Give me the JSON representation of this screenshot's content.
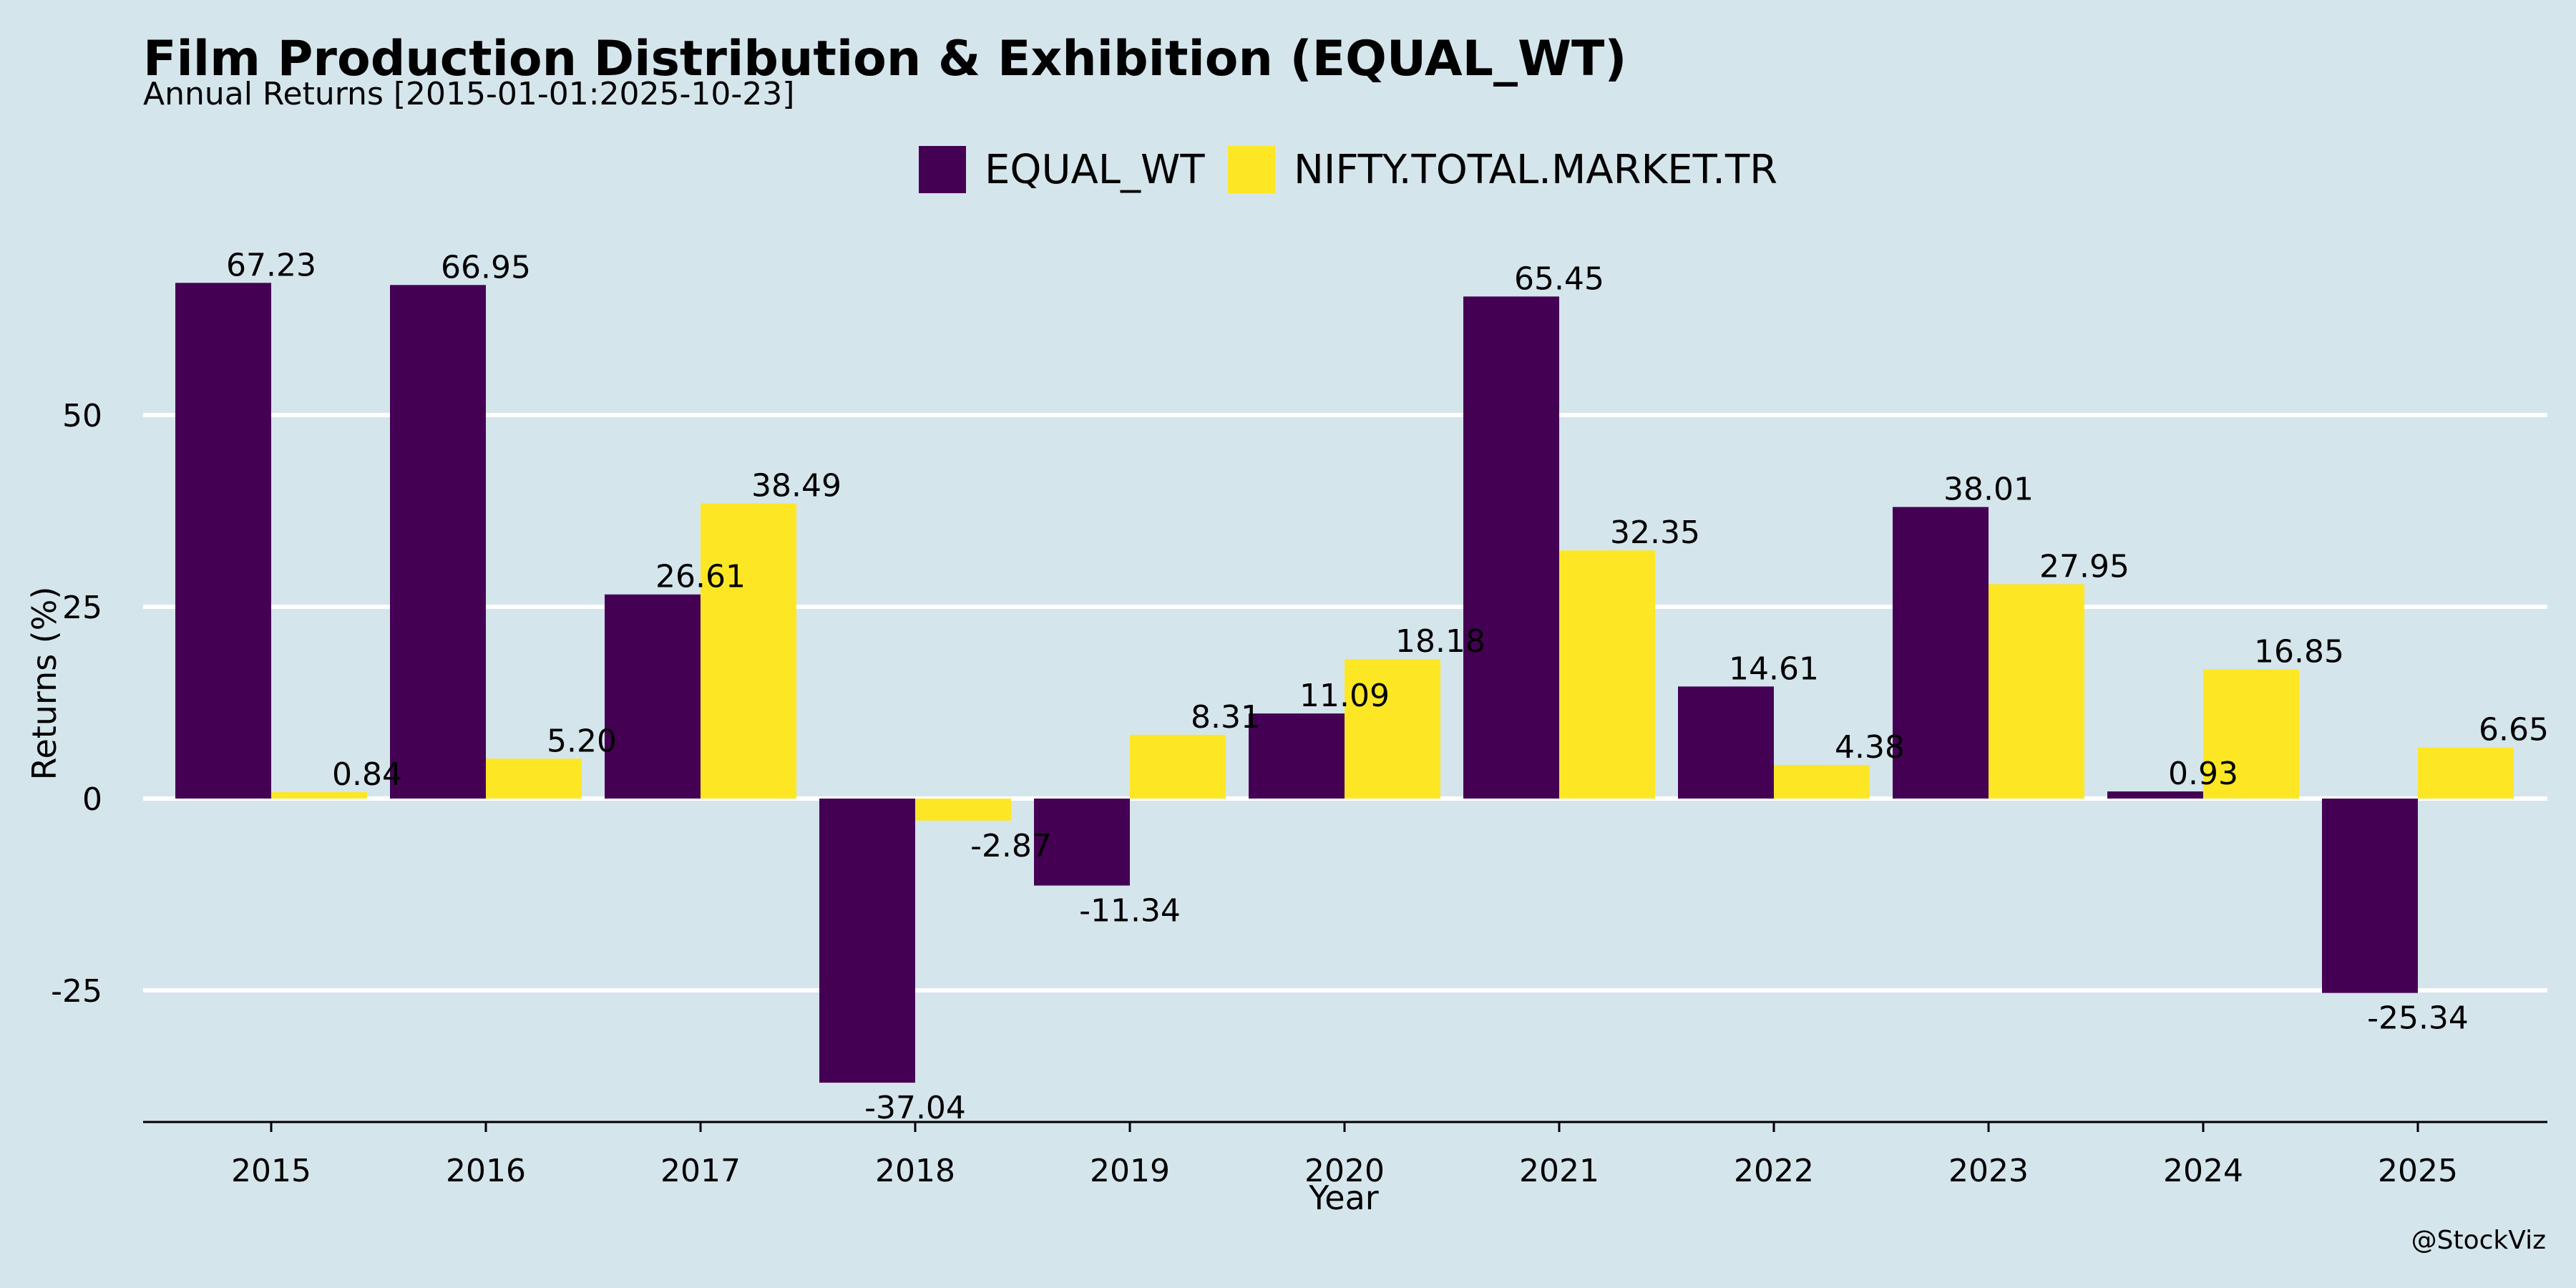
{
  "chart_data": {
    "type": "bar",
    "title": "Film Production Distribution & Exhibition (EQUAL_WT)",
    "subtitle": "Annual Returns [2015-01-01:2025-10-23]",
    "xlabel": "Year",
    "ylabel": "Returns (%)",
    "categories": [
      "2015",
      "2016",
      "2017",
      "2018",
      "2019",
      "2020",
      "2021",
      "2022",
      "2023",
      "2024",
      "2025"
    ],
    "series": [
      {
        "name": "EQUAL_WT",
        "color": "#440154",
        "values": [
          67.23,
          66.95,
          26.61,
          -37.04,
          -11.34,
          11.09,
          65.45,
          14.61,
          38.01,
          0.93,
          -25.34
        ],
        "labels": [
          "67.23",
          "66.95",
          "26.61",
          "-37.04",
          "-11.34",
          "11.09",
          "65.45",
          "14.61",
          "38.01",
          "0.93",
          "-25.34"
        ]
      },
      {
        "name": "NIFTY.TOTAL.MARKET.TR",
        "color": "#fde725",
        "values": [
          0.84,
          5.2,
          38.49,
          -2.87,
          8.31,
          18.18,
          32.35,
          4.38,
          27.95,
          16.85,
          6.65
        ],
        "labels": [
          "0.84",
          "5.20",
          "38.49",
          "-2.87",
          "8.31",
          "18.18",
          "32.35",
          "4.38",
          "27.95",
          "16.85",
          "6.65"
        ]
      }
    ],
    "yticks": [
      -25,
      0,
      25,
      50
    ],
    "ylim": [
      -42,
      75
    ],
    "grid": "horizontal",
    "legend_position": "top-center",
    "caption": "@StockViz",
    "background": "#d5e5ec"
  }
}
